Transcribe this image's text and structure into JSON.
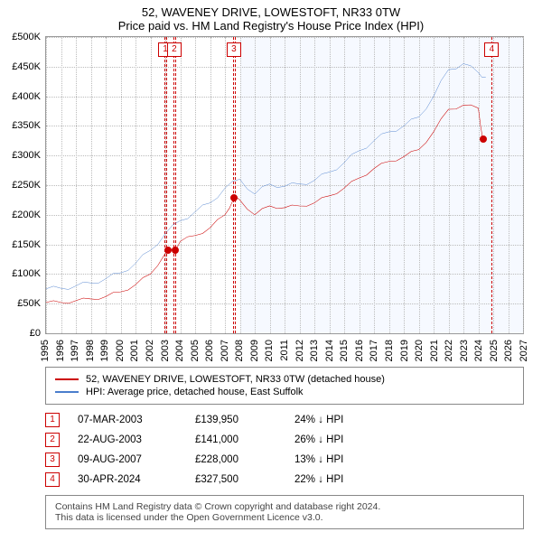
{
  "title_line1": "52, WAVENEY DRIVE, LOWESTOFT, NR33 0TW",
  "title_line2": "Price paid vs. HM Land Registry's House Price Index (HPI)",
  "chart": {
    "type": "line",
    "background_color": "#ffffff",
    "grid_color": "#bbbbbb",
    "border_color": "#999999",
    "shaded_region_color": "rgba(100,150,255,0.06)",
    "shaded_region_x": [
      2008,
      2027
    ],
    "xlim": [
      1995,
      2027
    ],
    "ylim": [
      0,
      500000
    ],
    "xtick_step": 1,
    "ytick_step": 50000,
    "x_ticks": [
      1995,
      1996,
      1997,
      1998,
      1999,
      2000,
      2001,
      2002,
      2003,
      2004,
      2005,
      2006,
      2007,
      2008,
      2009,
      2010,
      2011,
      2012,
      2013,
      2014,
      2015,
      2016,
      2017,
      2018,
      2019,
      2020,
      2021,
      2022,
      2023,
      2024,
      2025,
      2026,
      2027
    ],
    "y_tick_labels": [
      "£0",
      "£50K",
      "£100K",
      "£150K",
      "£200K",
      "£250K",
      "£300K",
      "£350K",
      "£400K",
      "£450K",
      "£500K"
    ],
    "tick_fontsize": 11,
    "callout_border_color": "#cc0000",
    "callout_text_color": "#cc0000",
    "marker_radius": 4,
    "series": [
      {
        "name": "property",
        "label": "52, WAVENEY DRIVE, LOWESTOFT, NR33 0TW (detached house)",
        "color": "#cc0000",
        "line_width": 1.6,
        "data": [
          [
            1995,
            52000
          ],
          [
            1996,
            52000
          ],
          [
            1997,
            55000
          ],
          [
            1998,
            58000
          ],
          [
            1999,
            62000
          ],
          [
            2000,
            70000
          ],
          [
            2001,
            82000
          ],
          [
            2002,
            100000
          ],
          [
            2003,
            135000
          ],
          [
            2003.6,
            141000
          ],
          [
            2004,
            155000
          ],
          [
            2005,
            165000
          ],
          [
            2006,
            178000
          ],
          [
            2007,
            200000
          ],
          [
            2007.6,
            228000
          ],
          [
            2008,
            225000
          ],
          [
            2009,
            200000
          ],
          [
            2010,
            215000
          ],
          [
            2011,
            212000
          ],
          [
            2012,
            215000
          ],
          [
            2013,
            220000
          ],
          [
            2014,
            232000
          ],
          [
            2015,
            245000
          ],
          [
            2016,
            262000
          ],
          [
            2017,
            278000
          ],
          [
            2018,
            290000
          ],
          [
            2019,
            298000
          ],
          [
            2020,
            310000
          ],
          [
            2021,
            340000
          ],
          [
            2022,
            378000
          ],
          [
            2023,
            385000
          ],
          [
            2024,
            380000
          ],
          [
            2024.3,
            327500
          ]
        ]
      },
      {
        "name": "hpi",
        "label": "HPI: Average price, detached house, East Suffolk",
        "color": "#4a7ecc",
        "line_width": 1.4,
        "data": [
          [
            1995,
            75000
          ],
          [
            1996,
            76000
          ],
          [
            1997,
            80000
          ],
          [
            1998,
            85000
          ],
          [
            1999,
            92000
          ],
          [
            2000,
            102000
          ],
          [
            2001,
            118000
          ],
          [
            2002,
            140000
          ],
          [
            2003,
            168000
          ],
          [
            2004,
            190000
          ],
          [
            2005,
            205000
          ],
          [
            2006,
            220000
          ],
          [
            2007,
            245000
          ],
          [
            2008,
            260000
          ],
          [
            2009,
            235000
          ],
          [
            2010,
            252000
          ],
          [
            2011,
            248000
          ],
          [
            2012,
            252000
          ],
          [
            2013,
            258000
          ],
          [
            2014,
            272000
          ],
          [
            2015,
            288000
          ],
          [
            2016,
            308000
          ],
          [
            2017,
            325000
          ],
          [
            2018,
            340000
          ],
          [
            2019,
            350000
          ],
          [
            2020,
            365000
          ],
          [
            2021,
            400000
          ],
          [
            2022,
            445000
          ],
          [
            2023,
            455000
          ],
          [
            2024,
            440000
          ],
          [
            2024.5,
            432000
          ]
        ]
      }
    ],
    "sale_markers": [
      {
        "n": 1,
        "x": 2003.18,
        "y": 139950
      },
      {
        "n": 2,
        "x": 2003.64,
        "y": 141000
      },
      {
        "n": 3,
        "x": 2007.6,
        "y": 228000
      },
      {
        "n": 4,
        "x": 2024.33,
        "y": 327500
      }
    ],
    "callout_positions": {
      "1": {
        "x": 2003.0,
        "top": true
      },
      "2": {
        "x": 2003.6,
        "top": true
      },
      "3": {
        "x": 2007.6,
        "top": true
      },
      "4": {
        "x": 2024.9,
        "top": true
      }
    }
  },
  "legend": {
    "items": [
      {
        "color": "#cc0000",
        "label": "52, WAVENEY DRIVE, LOWESTOFT, NR33 0TW (detached house)"
      },
      {
        "color": "#4a7ecc",
        "label": "HPI: Average price, detached house, East Suffolk"
      }
    ],
    "fontsize": 11
  },
  "sales": [
    {
      "n": "1",
      "date": "07-MAR-2003",
      "price": "£139,950",
      "diff": "24% ↓ HPI"
    },
    {
      "n": "2",
      "date": "22-AUG-2003",
      "price": "£141,000",
      "diff": "26% ↓ HPI"
    },
    {
      "n": "3",
      "date": "09-AUG-2007",
      "price": "£228,000",
      "diff": "13% ↓ HPI"
    },
    {
      "n": "4",
      "date": "30-APR-2024",
      "price": "£327,500",
      "diff": "22% ↓ HPI"
    }
  ],
  "footer_line1": "Contains HM Land Registry data © Crown copyright and database right 2024.",
  "footer_line2": "This data is licensed under the Open Government Licence v3.0."
}
